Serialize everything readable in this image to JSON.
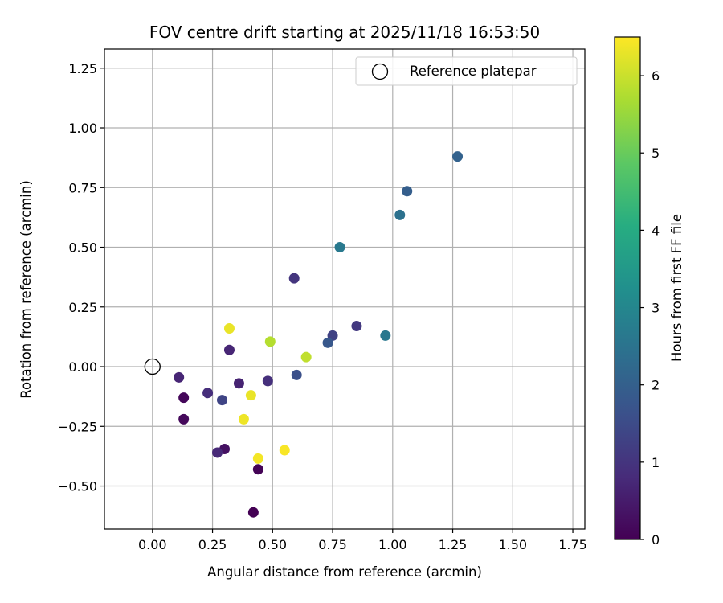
{
  "chart_data": {
    "type": "scatter",
    "title": "FOV centre drift starting at 2025/11/18 16:53:50",
    "xlabel": "Angular distance from reference (arcmin)",
    "ylabel": "Rotation from reference (arcmin)",
    "xlim": [
      -0.2,
      1.8
    ],
    "ylim": [
      -0.68,
      1.33
    ],
    "x_ticks": [
      0.0,
      0.25,
      0.5,
      0.75,
      1.0,
      1.25,
      1.5,
      1.75
    ],
    "x_tick_labels": [
      "0.00",
      "0.25",
      "0.50",
      "0.75",
      "1.00",
      "1.25",
      "1.50",
      "1.75"
    ],
    "y_ticks": [
      -0.5,
      -0.25,
      0.0,
      0.25,
      0.5,
      0.75,
      1.0,
      1.25
    ],
    "y_tick_labels": [
      "−0.50",
      "−0.25",
      "0.00",
      "0.25",
      "0.50",
      "0.75",
      "1.00",
      "1.25"
    ],
    "grid": true,
    "legend": {
      "position": "top-right",
      "label": "Reference platepar"
    },
    "reference_point": {
      "x": 0.0,
      "y": 0.0
    },
    "colorbar": {
      "label": "Hours from first FF file",
      "colormap": "viridis",
      "range": [
        0,
        6.5
      ],
      "ticks": [
        0,
        1,
        2,
        3,
        4,
        5,
        6
      ],
      "tick_labels": [
        "0",
        "1",
        "2",
        "3",
        "4",
        "5",
        "6"
      ]
    },
    "points": [
      {
        "x": 0.42,
        "y": -0.61,
        "hours": 0.0
      },
      {
        "x": 0.44,
        "y": -0.43,
        "hours": 0.05
      },
      {
        "x": 0.13,
        "y": -0.13,
        "hours": 0.1
      },
      {
        "x": 0.13,
        "y": -0.22,
        "hours": 0.15
      },
      {
        "x": 0.3,
        "y": -0.345,
        "hours": 0.3
      },
      {
        "x": 0.11,
        "y": -0.045,
        "hours": 0.7
      },
      {
        "x": 0.27,
        "y": -0.36,
        "hours": 0.75
      },
      {
        "x": 0.36,
        "y": -0.07,
        "hours": 0.65
      },
      {
        "x": 0.32,
        "y": 0.07,
        "hours": 0.7
      },
      {
        "x": 0.23,
        "y": -0.11,
        "hours": 0.85
      },
      {
        "x": 0.48,
        "y": -0.06,
        "hours": 0.9
      },
      {
        "x": 0.29,
        "y": -0.14,
        "hours": 1.35
      },
      {
        "x": 0.59,
        "y": 0.37,
        "hours": 1.0
      },
      {
        "x": 0.6,
        "y": -0.035,
        "hours": 1.6
      },
      {
        "x": 0.75,
        "y": 0.13,
        "hours": 1.3
      },
      {
        "x": 0.85,
        "y": 0.17,
        "hours": 1.1
      },
      {
        "x": 0.73,
        "y": 0.1,
        "hours": 1.8
      },
      {
        "x": 1.06,
        "y": 0.735,
        "hours": 1.95
      },
      {
        "x": 1.27,
        "y": 0.88,
        "hours": 2.05
      },
      {
        "x": 1.03,
        "y": 0.635,
        "hours": 2.45
      },
      {
        "x": 0.78,
        "y": 0.5,
        "hours": 2.65
      },
      {
        "x": 0.97,
        "y": 0.13,
        "hours": 2.6
      },
      {
        "x": 0.49,
        "y": 0.105,
        "hours": 5.8
      },
      {
        "x": 0.64,
        "y": 0.04,
        "hours": 5.9
      },
      {
        "x": 0.32,
        "y": 0.16,
        "hours": 6.3
      },
      {
        "x": 0.41,
        "y": -0.12,
        "hours": 6.3
      },
      {
        "x": 0.38,
        "y": -0.22,
        "hours": 6.35
      },
      {
        "x": 0.44,
        "y": -0.385,
        "hours": 6.4
      },
      {
        "x": 0.55,
        "y": -0.35,
        "hours": 6.45
      }
    ]
  }
}
